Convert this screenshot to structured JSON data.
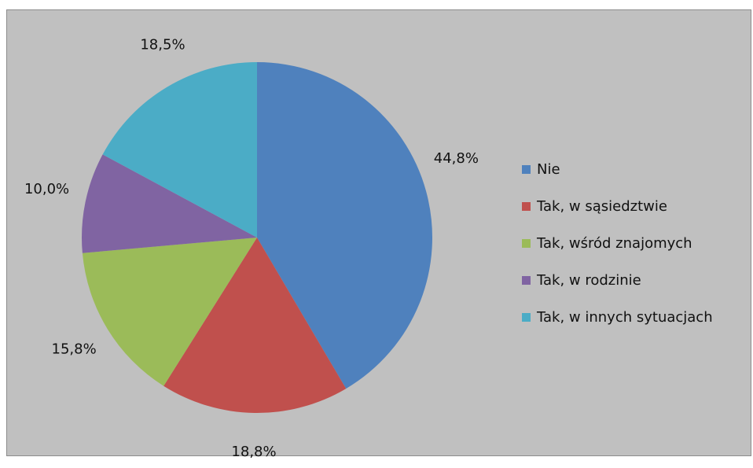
{
  "chart_data": {
    "type": "pie",
    "title": "",
    "legend_position": "right",
    "start_angle_deg": 0,
    "direction": "clockwise",
    "slices": [
      {
        "label": "Nie",
        "value": 44.8,
        "display": "44,8%",
        "color": "#4f81bd"
      },
      {
        "label": "Tak, w sąsiedztwie",
        "value": 18.8,
        "display": "18,8%",
        "color": "#c0504d"
      },
      {
        "label": "Tak, wśród znajomych",
        "value": 15.8,
        "display": "15,8%",
        "color": "#9bbb59"
      },
      {
        "label": "Tak, w rodzinie",
        "value": 10.0,
        "display": "10,0%",
        "color": "#8064a2"
      },
      {
        "label": "Tak, w innych sytuacjach",
        "value": 18.5,
        "display": "18,5%",
        "color": "#4bacc6"
      }
    ]
  }
}
